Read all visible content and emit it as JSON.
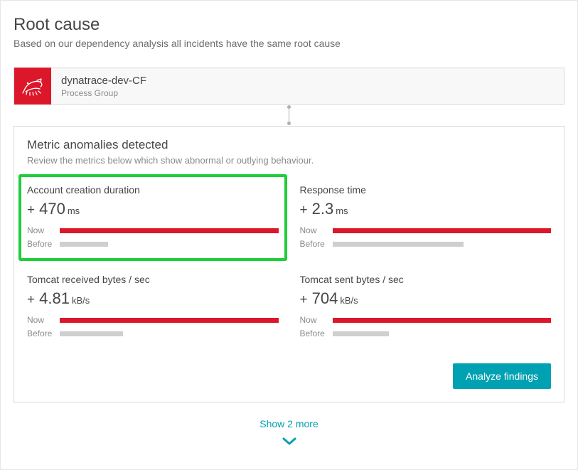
{
  "header": {
    "title": "Root cause",
    "subtitle": "Based on our dependency analysis all incidents have the same root cause"
  },
  "process": {
    "name": "dynatrace-dev-CF",
    "type": "Process Group",
    "icon_bg": "#dc172a",
    "icon_stroke": "#ffffff"
  },
  "anomalies": {
    "title": "Metric anomalies detected",
    "subtitle": "Review the metrics below which show abnormal or outlying behaviour."
  },
  "colors": {
    "bar_now": "#dc172a",
    "bar_before": "#cfcfcf",
    "highlight_border": "#1fce3a",
    "primary_button": "#00a1b2",
    "connector": "#b0b0b0"
  },
  "bar_labels": {
    "now": "Now",
    "before": "Before"
  },
  "metrics": [
    {
      "label": "Account creation duration",
      "sign": "+",
      "value": "470",
      "unit": "ms",
      "now_pct": 100,
      "before_pct": 22,
      "highlighted": true
    },
    {
      "label": "Response time",
      "sign": "+",
      "value": "2.3",
      "unit": "ms",
      "now_pct": 100,
      "before_pct": 60,
      "highlighted": false
    },
    {
      "label": "Tomcat received bytes / sec",
      "sign": "+",
      "value": "4.81",
      "unit": "kB/s",
      "now_pct": 100,
      "before_pct": 29,
      "highlighted": false
    },
    {
      "label": "Tomcat sent bytes / sec",
      "sign": "+",
      "value": "704",
      "unit": "kB/s",
      "now_pct": 100,
      "before_pct": 26,
      "highlighted": false
    }
  ],
  "actions": {
    "analyze": "Analyze findings"
  },
  "show_more": {
    "text": "Show 2 more"
  }
}
